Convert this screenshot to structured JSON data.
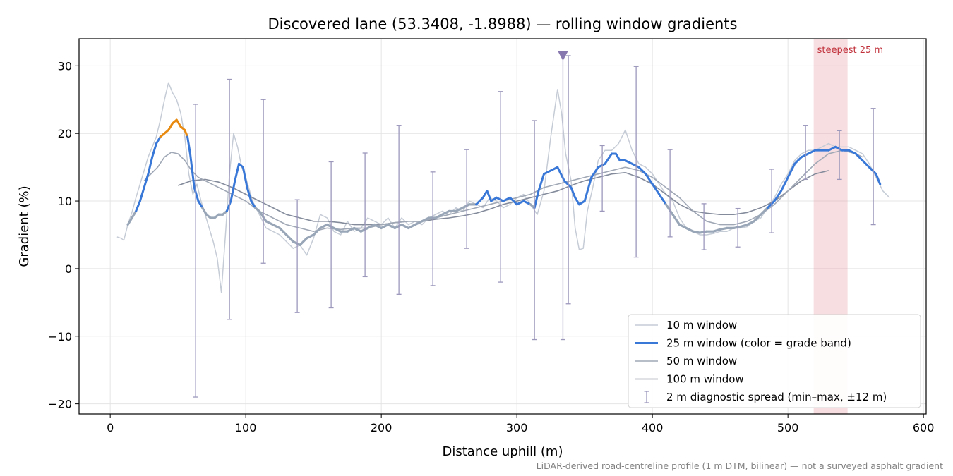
{
  "chart_data": {
    "type": "line",
    "title": "Discovered lane (53.3408, -1.8988) — rolling window gradients",
    "xlabel": "Distance uphill (m)",
    "ylabel": "Gradient (%)",
    "xlim": [
      -23,
      602
    ],
    "ylim": [
      -21.5,
      34
    ],
    "x_ticks": [
      0,
      100,
      200,
      300,
      400,
      500,
      600
    ],
    "y_ticks": [
      -20,
      -10,
      0,
      10,
      20,
      30
    ],
    "y_tick_labels": [
      "−20",
      "−10",
      "0",
      "10",
      "20",
      "30"
    ],
    "grid": true,
    "legend_position": "lower right",
    "footnote": "LiDAR-derived road-centreline profile (1 m DTM, bilinear) — not a surveyed asphalt gradient",
    "steepest_band": {
      "label": "steepest 25 m",
      "x_start": 519,
      "x_end": 544,
      "color": "#e8a0a8"
    },
    "marker": {
      "x": 334,
      "y": 31.5,
      "shape": "triangle-down",
      "color": "#8878b0"
    },
    "colors": {
      "w10": "#c6ccd6",
      "w25": "#3a78d8",
      "w25_steep": "#e88a10",
      "w25_easy": "#98a6b8",
      "w50": "#a0a8b6",
      "w100": "#848c9c",
      "errbar": "#9c98bc"
    },
    "series": [
      {
        "name": "10 m window",
        "x": [
          5,
          8,
          10,
          13,
          16,
          19,
          22,
          25,
          28,
          31,
          34,
          37,
          40,
          43,
          46,
          49,
          52,
          55,
          58,
          61,
          64,
          67,
          70,
          73,
          76,
          79,
          82,
          85,
          88,
          91,
          94,
          97,
          100,
          105,
          110,
          115,
          120,
          125,
          130,
          135,
          140,
          145,
          150,
          155,
          160,
          165,
          170,
          175,
          180,
          185,
          190,
          195,
          200,
          205,
          210,
          215,
          220,
          225,
          230,
          235,
          240,
          245,
          250,
          255,
          260,
          265,
          270,
          275,
          280,
          285,
          290,
          295,
          300,
          305,
          310,
          315,
          320,
          325,
          330,
          333,
          336,
          340,
          343,
          346,
          349,
          352,
          356,
          360,
          365,
          370,
          375,
          380,
          385,
          390,
          395,
          400,
          405,
          410,
          415,
          420,
          425,
          430,
          435,
          440,
          445,
          450,
          455,
          460,
          465,
          470,
          475,
          480,
          485,
          490,
          495,
          500,
          505,
          510,
          515,
          520,
          525,
          530,
          535,
          540,
          545,
          550,
          555,
          560,
          565,
          570,
          575
        ],
        "y": [
          4.7,
          4.5,
          4.2,
          6.5,
          8.3,
          10.5,
          12.5,
          14.5,
          16.5,
          18.0,
          19.5,
          22.0,
          25.0,
          27.5,
          26.0,
          25.0,
          23.0,
          19.5,
          14.0,
          11.0,
          12.5,
          10.0,
          8.0,
          6.0,
          4.0,
          1.5,
          -3.5,
          5.0,
          14.0,
          20.0,
          18.0,
          15.0,
          13.5,
          10.0,
          8.0,
          6.0,
          5.5,
          5.0,
          4.0,
          3.0,
          3.5,
          2.0,
          4.5,
          8.0,
          7.5,
          5.5,
          5.0,
          7.0,
          5.5,
          6.0,
          7.5,
          7.0,
          6.5,
          7.5,
          6.0,
          7.5,
          6.5,
          7.0,
          6.5,
          7.5,
          8.0,
          8.5,
          8.0,
          9.0,
          8.5,
          10.0,
          9.5,
          9.0,
          10.5,
          10.0,
          9.0,
          9.5,
          10.5,
          11.0,
          9.5,
          8.0,
          11.5,
          19.5,
          26.5,
          23.0,
          17.0,
          13.0,
          6.0,
          2.8,
          3.0,
          8.5,
          12.0,
          16.0,
          17.5,
          17.5,
          18.5,
          20.5,
          17.5,
          15.5,
          15.0,
          14.0,
          12.5,
          11.0,
          10.0,
          7.5,
          6.0,
          5.5,
          5.0,
          5.0,
          5.2,
          5.5,
          5.5,
          6.0,
          6.0,
          6.2,
          7.0,
          7.5,
          9.0,
          10.5,
          12.5,
          14.0,
          16.0,
          17.0,
          17.5,
          17.5,
          18.0,
          18.5,
          18.0,
          18.0,
          18.0,
          17.5,
          17.0,
          15.5,
          13.5,
          11.5,
          10.5
        ]
      },
      {
        "name": "25 m window (color = grade band)",
        "x": [
          13,
          16,
          19,
          22,
          25,
          28,
          31,
          34,
          37,
          40,
          43,
          46,
          49,
          52,
          55,
          57,
          59,
          62,
          65,
          68,
          71,
          74,
          77,
          80,
          83,
          86,
          89,
          92,
          95,
          98,
          101,
          104,
          107,
          110,
          115,
          120,
          125,
          130,
          135,
          140,
          145,
          150,
          155,
          160,
          165,
          170,
          175,
          180,
          185,
          190,
          195,
          200,
          205,
          210,
          215,
          220,
          225,
          230,
          235,
          240,
          245,
          250,
          255,
          260,
          265,
          270,
          275,
          278,
          281,
          285,
          290,
          295,
          300,
          305,
          310,
          313,
          316,
          320,
          325,
          330,
          335,
          340,
          343,
          346,
          350,
          355,
          360,
          365,
          370,
          373,
          376,
          380,
          385,
          390,
          395,
          400,
          405,
          410,
          415,
          420,
          425,
          430,
          435,
          440,
          445,
          450,
          455,
          460,
          465,
          470,
          475,
          480,
          485,
          490,
          495,
          500,
          505,
          510,
          515,
          520,
          525,
          530,
          535,
          540,
          545,
          550,
          555,
          560,
          565,
          568
        ],
        "y": [
          6.5,
          7.5,
          8.5,
          10.0,
          12.0,
          14.0,
          16.5,
          18.5,
          19.5,
          20.0,
          20.5,
          21.5,
          22.0,
          21.0,
          20.5,
          19.5,
          17.0,
          12.0,
          10.0,
          9.0,
          8.0,
          7.5,
          7.5,
          8.0,
          8.0,
          8.5,
          10.0,
          13.0,
          15.5,
          15.0,
          12.0,
          10.0,
          9.0,
          8.5,
          7.0,
          6.5,
          6.0,
          5.0,
          4.0,
          3.5,
          4.5,
          5.0,
          6.0,
          6.5,
          6.0,
          5.5,
          5.5,
          6.0,
          5.5,
          6.0,
          6.5,
          6.0,
          6.5,
          6.0,
          6.5,
          6.0,
          6.5,
          7.0,
          7.5,
          7.5,
          8.0,
          8.5,
          8.5,
          9.0,
          9.5,
          9.5,
          10.5,
          11.5,
          10.0,
          10.5,
          10.0,
          10.5,
          9.5,
          10.0,
          9.5,
          9.0,
          11.5,
          14.0,
          14.5,
          15.0,
          13.0,
          12.0,
          10.5,
          9.5,
          10.0,
          13.5,
          15.0,
          15.5,
          17.0,
          17.0,
          16.0,
          16.0,
          15.5,
          15.0,
          14.0,
          12.5,
          11.0,
          9.5,
          8.0,
          6.5,
          6.0,
          5.5,
          5.3,
          5.5,
          5.5,
          5.8,
          6.0,
          6.0,
          6.2,
          6.5,
          7.0,
          8.0,
          9.0,
          10.0,
          11.5,
          13.5,
          15.5,
          16.5,
          17.0,
          17.5,
          17.5,
          17.5,
          18.0,
          17.5,
          17.5,
          17.0,
          16.0,
          15.0,
          14.0,
          12.5
        ]
      },
      {
        "name": "50 m window",
        "x": [
          25,
          30,
          35,
          40,
          45,
          50,
          55,
          60,
          65,
          70,
          75,
          80,
          85,
          90,
          95,
          100,
          110,
          120,
          130,
          140,
          150,
          160,
          170,
          180,
          190,
          200,
          210,
          220,
          230,
          240,
          250,
          260,
          270,
          280,
          290,
          300,
          310,
          320,
          330,
          340,
          350,
          360,
          370,
          380,
          390,
          400,
          410,
          420,
          430,
          440,
          450,
          460,
          470,
          480,
          490,
          500,
          510,
          520,
          530,
          540,
          550,
          555
        ],
        "y": [
          13.0,
          14.0,
          15.0,
          16.5,
          17.2,
          17.0,
          16.0,
          14.5,
          13.5,
          13.0,
          12.5,
          12.0,
          11.5,
          11.0,
          10.5,
          10.0,
          8.5,
          7.5,
          6.5,
          6.0,
          5.5,
          6.0,
          5.8,
          6.0,
          6.0,
          6.5,
          6.8,
          7.0,
          7.0,
          7.5,
          8.0,
          8.5,
          9.0,
          9.5,
          10.0,
          10.5,
          11.0,
          12.0,
          12.5,
          13.0,
          13.5,
          14.0,
          14.5,
          15.0,
          14.5,
          13.5,
          12.0,
          10.5,
          8.5,
          7.0,
          6.5,
          6.5,
          7.0,
          8.0,
          9.5,
          11.5,
          13.5,
          15.5,
          17.0,
          17.5,
          17.0,
          16.5
        ]
      },
      {
        "name": "100 m window",
        "x": [
          50,
          60,
          70,
          80,
          90,
          100,
          110,
          120,
          130,
          140,
          150,
          160,
          170,
          180,
          190,
          200,
          210,
          220,
          230,
          240,
          250,
          260,
          270,
          280,
          290,
          300,
          310,
          320,
          330,
          340,
          350,
          360,
          370,
          380,
          390,
          400,
          410,
          420,
          430,
          440,
          450,
          460,
          470,
          480,
          490,
          500,
          510,
          520,
          530
        ],
        "y": [
          12.3,
          13.0,
          13.2,
          12.8,
          12.0,
          11.0,
          10.0,
          9.0,
          8.0,
          7.5,
          7.0,
          7.0,
          6.8,
          6.5,
          6.5,
          6.5,
          6.8,
          7.0,
          7.0,
          7.3,
          7.5,
          7.8,
          8.2,
          8.8,
          9.5,
          10.0,
          10.5,
          11.0,
          11.5,
          12.3,
          13.0,
          13.5,
          14.0,
          14.2,
          13.5,
          12.5,
          11.0,
          9.5,
          8.5,
          8.2,
          8.0,
          8.0,
          8.3,
          9.0,
          10.0,
          11.5,
          13.0,
          14.0,
          14.5
        ]
      }
    ],
    "error_bars": {
      "name": "2 m diagnostic spread (min–max, ±12 m)",
      "x": [
        63,
        88,
        113,
        138,
        163,
        188,
        213,
        238,
        263,
        288,
        313,
        334,
        338,
        363,
        388,
        413,
        438,
        463,
        488,
        513,
        538,
        563
      ],
      "low": [
        -19.0,
        -7.5,
        0.8,
        -6.5,
        -5.8,
        -1.2,
        -3.8,
        -2.5,
        3.0,
        -2.0,
        -10.5,
        -10.5,
        -5.2,
        8.5,
        1.7,
        4.7,
        2.8,
        3.2,
        5.3,
        13.2,
        13.2,
        6.5
      ],
      "high": [
        24.3,
        28.0,
        25.0,
        10.2,
        15.8,
        17.1,
        21.2,
        14.3,
        17.6,
        26.2,
        21.9,
        31.5,
        31.5,
        18.2,
        29.9,
        17.6,
        9.6,
        8.9,
        14.7,
        21.2,
        20.4,
        23.7
      ]
    }
  }
}
